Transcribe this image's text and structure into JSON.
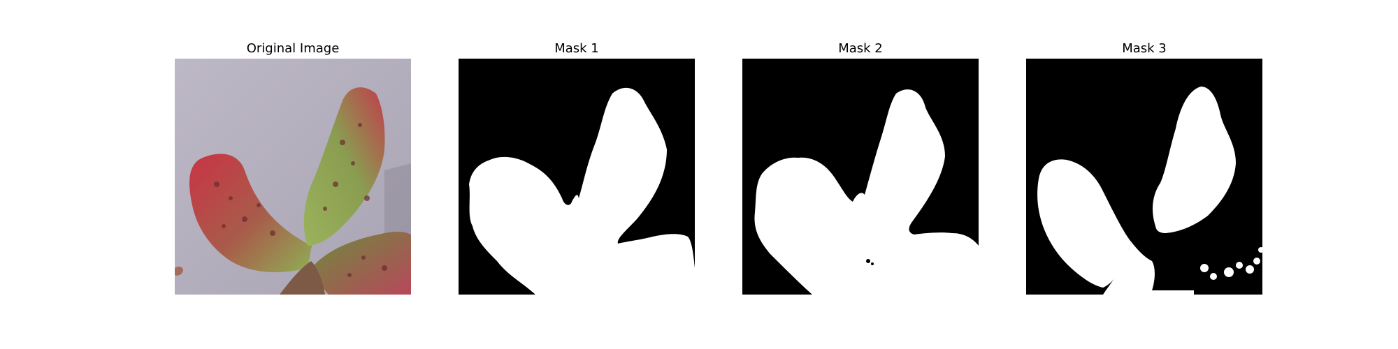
{
  "panels": [
    {
      "title": "Original Image"
    },
    {
      "title": "Mask 1"
    },
    {
      "title": "Mask 2"
    },
    {
      "title": "Mask 3"
    }
  ],
  "colors": {
    "background": "#ffffff",
    "mask_background": "#000000",
    "mask_foreground": "#ffffff",
    "backdrop_gray": "#b9b4c3",
    "leaf_red": "#c23a48",
    "leaf_green": "#8aa64f"
  }
}
